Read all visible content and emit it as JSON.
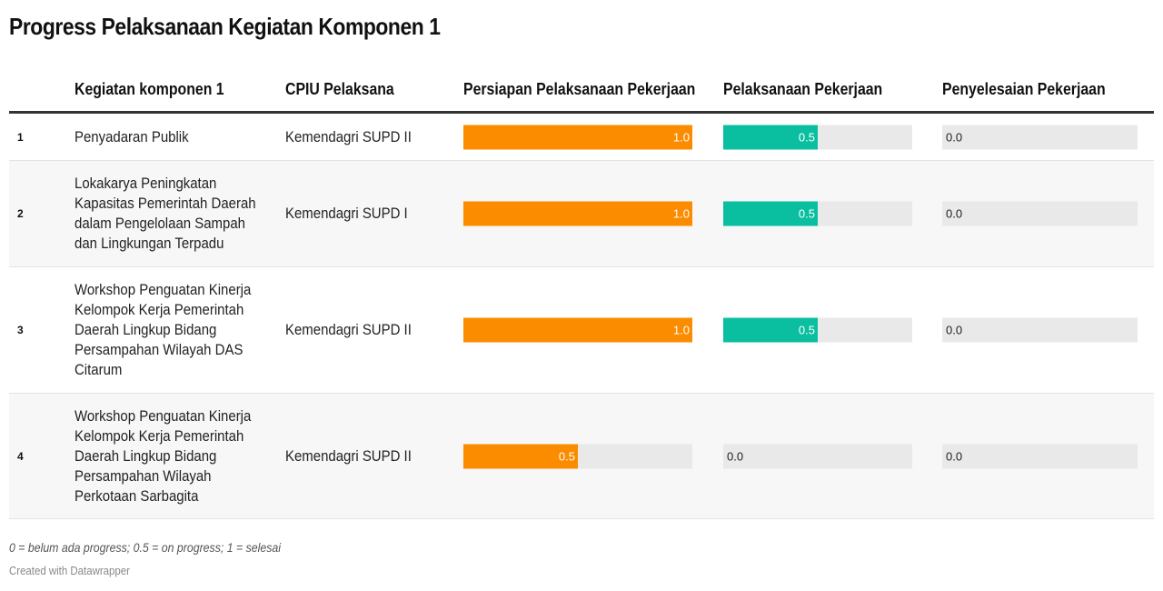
{
  "title": "Progress Pelaksanaan Kegiatan Komponen 1",
  "headers": {
    "activity": "Kegiatan komponen 1",
    "cpiu": "CPIU Pelaksana",
    "col1": "Persiapan Pelaksanaan Pekerjaan",
    "col2": "Pelaksanaan Pekerjaan",
    "col3": "Penyelesaian Pekerjaan"
  },
  "colors": {
    "persiapan": "#fb8c00",
    "pelaksanaan": "#0abfa0",
    "track": "#e9e9e9"
  },
  "chart_data": {
    "type": "table",
    "scale_max": 1.0,
    "columns": [
      "Kegiatan komponen 1",
      "CPIU Pelaksana",
      "Persiapan Pelaksanaan Pekerjaan",
      "Pelaksanaan Pekerjaan",
      "Penyelesaian Pekerjaan"
    ],
    "rows": [
      {
        "num": "1",
        "lines": [
          "Penyadaran Publik"
        ],
        "cpiu": "Kemendagri SUPD II",
        "values": [
          1.0,
          0.5,
          0.0
        ],
        "labels": [
          "1.0",
          "0.5",
          "0.0"
        ]
      },
      {
        "num": "2",
        "lines": [
          "Lokakarya Peningkatan",
          "Kapasitas Pemerintah Daerah",
          "dalam Pengelolaan Sampah",
          "dan Lingkungan Terpadu"
        ],
        "cpiu": "Kemendagri SUPD I",
        "values": [
          1.0,
          0.5,
          0.0
        ],
        "labels": [
          "1.0",
          "0.5",
          "0.0"
        ]
      },
      {
        "num": "3",
        "lines": [
          "Workshop Penguatan Kinerja",
          "Kelompok Kerja Pemerintah",
          "Daerah Lingkup Bidang",
          "Persampahan Wilayah DAS",
          "Citarum"
        ],
        "cpiu": "Kemendagri SUPD II",
        "values": [
          1.0,
          0.5,
          0.0
        ],
        "labels": [
          "1.0",
          "0.5",
          "0.0"
        ]
      },
      {
        "num": "4",
        "lines": [
          "Workshop Penguatan Kinerja",
          "Kelompok Kerja Pemerintah",
          "Daerah Lingkup Bidang",
          "Persampahan Wilayah",
          "Perkotaan Sarbagita"
        ],
        "cpiu": "Kemendagri SUPD II",
        "values": [
          0.5,
          0.0,
          0.0
        ],
        "labels": [
          "0.5",
          "0.0",
          "0.0"
        ]
      }
    ]
  },
  "note": "0 = belum ada progress; 0.5 = on progress; 1 = selesai",
  "credit": "Created with Datawrapper"
}
